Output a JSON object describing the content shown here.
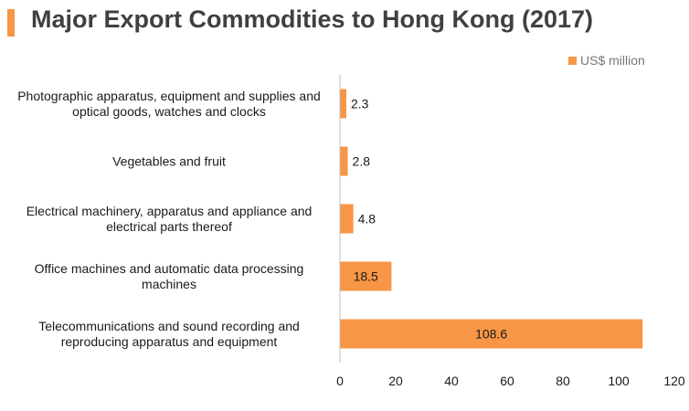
{
  "title": "Major Export Commodities to Hong Kong (2017)",
  "colors": {
    "accent": "#F79646",
    "bar": "#F79646",
    "axis": "#BFBFBF",
    "title": "#404040"
  },
  "chart_data": {
    "type": "bar",
    "orientation": "horizontal",
    "categories": [
      [
        "Photographic apparatus, equipment and supplies and",
        "optical goods, watches and clocks"
      ],
      [
        "Vegetables and fruit"
      ],
      [
        "Electrical machinery, apparatus and appliance and",
        "electrical parts thereof"
      ],
      [
        "Office machines and automatic data processing",
        "machines"
      ],
      [
        "Telecommunications and sound recording and",
        "reproducing apparatus and equipment"
      ]
    ],
    "series": [
      {
        "name": "US$ million",
        "values": [
          2.3,
          2.8,
          4.8,
          18.5,
          108.6
        ],
        "labels": [
          "2.3",
          "2.8",
          "4.8",
          "18.5",
          "108.6"
        ]
      }
    ],
    "xlim": [
      0,
      120
    ],
    "xticks": [
      0,
      20,
      40,
      60,
      80,
      100,
      120
    ],
    "legend_position": "top-right",
    "grid": false
  }
}
